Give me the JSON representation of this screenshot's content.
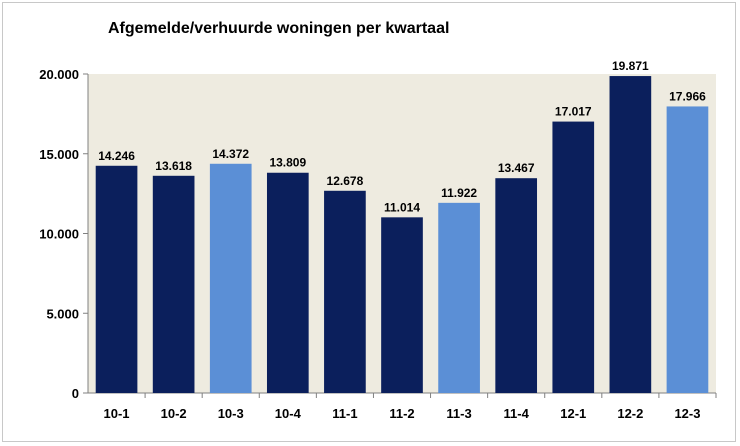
{
  "chart_data": {
    "type": "bar",
    "title": "Afgemelde/verhuurde woningen per kwartaal",
    "xlabel": "",
    "ylabel": "",
    "categories": [
      "10-1",
      "10-2",
      "10-3",
      "10-4",
      "11-1",
      "11-2",
      "11-3",
      "11-4",
      "12-1",
      "12-2",
      "12-3"
    ],
    "values": [
      14246,
      13618,
      14372,
      13809,
      12678,
      11014,
      11922,
      13467,
      17017,
      19871,
      17966
    ],
    "value_labels": [
      "14.246",
      "13.618",
      "14.372",
      "13.809",
      "12.678",
      "11.014",
      "11.922",
      "13.467",
      "17.017",
      "19.871",
      "17.966"
    ],
    "ylim": [
      0,
      20000
    ],
    "yticks": [
      0,
      5000,
      10000,
      15000,
      20000
    ],
    "ytick_labels": [
      "0",
      "5.000",
      "10.000",
      "15.000",
      "20.000"
    ],
    "grid": false,
    "legend": "none",
    "colors": {
      "dark_bar": "#0b1f5c",
      "light_bar": "#5b8fd6",
      "plot_background": "#eeebe0"
    },
    "light_categories": [
      "10-3",
      "11-3",
      "12-3"
    ]
  }
}
